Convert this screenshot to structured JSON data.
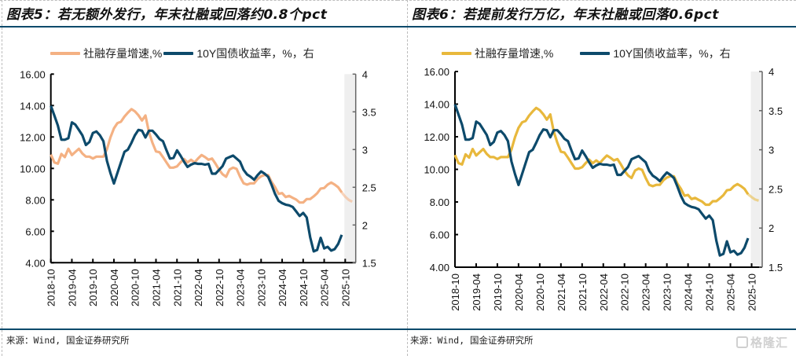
{
  "colors": {
    "rule": "#0d4a6b",
    "yield_line": "#0d4a6b",
    "tsf_left": "#f4b183",
    "tsf_right": "#e8b83c",
    "shade": "#efefef"
  },
  "source_text": "来源：Wind, 国金证券研究所",
  "watermark": "格隆汇",
  "chart_data": [
    {
      "type": "line",
      "title": "图表5：若无额外发行，年末社融或回落约0.8个pct",
      "legend": [
        "社融存量增速,%",
        "10Y国债收益率，%，右"
      ],
      "legend_position": "top",
      "grid": false,
      "x_tick_labels": [
        "2018-10",
        "2019-04",
        "2019-10",
        "2020-04",
        "2020-10",
        "2021-04",
        "2021-10",
        "2022-04",
        "2022-10",
        "2023-04",
        "2023-10",
        "2024-04",
        "2024-10",
        "2025-04",
        "2025-10"
      ],
      "x_range": [
        "2018-10",
        "2026-01"
      ],
      "shaded_region": [
        "2025-10",
        "2026-01"
      ],
      "y_left": {
        "range": [
          4,
          16
        ],
        "ticks": [
          "4.00",
          "6.00",
          "8.00",
          "10.00",
          "12.00",
          "14.00",
          "16.00"
        ]
      },
      "y_right": {
        "range": [
          1.5,
          4
        ],
        "ticks": [
          "1.5",
          "2",
          "2.5",
          "3",
          "3.5",
          "4"
        ]
      },
      "series": [
        {
          "name": "社融存量增速,%",
          "axis": "left",
          "start": "2018-10",
          "values": [
            10.88,
            10.38,
            10.3,
            10.92,
            10.72,
            11.25,
            10.85,
            11.05,
            11.25,
            10.95,
            10.75,
            10.75,
            10.63,
            10.75,
            10.75,
            10.75,
            11.22,
            11.97,
            12.55,
            12.88,
            12.97,
            13.3,
            13.55,
            13.77,
            13.63,
            13.38,
            13.05,
            13.37,
            12.3,
            11.63,
            11.08,
            11.03,
            10.72,
            10.38,
            10.05,
            10.05,
            10.13,
            10.38,
            10.6,
            10.38,
            10.55,
            10.38,
            10.63,
            10.85,
            10.72,
            10.55,
            10.63,
            10.3,
            9.92,
            9.63,
            9.47,
            9.93,
            10.05,
            9.97,
            9.47,
            9.05,
            8.97,
            9.05,
            9.05,
            9.33,
            9.5,
            9.58,
            9.58,
            9.13,
            8.8,
            8.38,
            8.43,
            8.18,
            8.25,
            8.13,
            8.02,
            7.83,
            7.83,
            8.05,
            8.05,
            8.22,
            8.42,
            8.72,
            8.75,
            8.97,
            9.1,
            8.97,
            8.8,
            8.47
          ],
          "projection_start": "2025-09",
          "projection": [
            8.47,
            8.2,
            8.0,
            7.88
          ]
        },
        {
          "name": "10Y国债收益率，%，右",
          "axis": "right",
          "start": "2018-10",
          "values": [
            3.58,
            3.45,
            3.32,
            3.13,
            3.13,
            3.15,
            3.36,
            3.33,
            3.26,
            3.19,
            3.06,
            3.1,
            3.22,
            3.24,
            3.19,
            3.11,
            2.85,
            2.69,
            2.55,
            2.69,
            2.83,
            2.97,
            3.0,
            3.09,
            3.19,
            3.26,
            3.25,
            3.16,
            3.25,
            3.25,
            3.2,
            3.14,
            3.11,
            2.99,
            2.88,
            2.89,
            2.99,
            2.92,
            2.84,
            2.77,
            2.8,
            2.82,
            2.81,
            2.81,
            2.8,
            2.81,
            2.68,
            2.68,
            2.73,
            2.78,
            2.88,
            2.9,
            2.92,
            2.88,
            2.84,
            2.73,
            2.67,
            2.64,
            2.6,
            2.66,
            2.71,
            2.68,
            2.64,
            2.53,
            2.41,
            2.32,
            2.29,
            2.27,
            2.26,
            2.24,
            2.18,
            2.12,
            2.16,
            2.1,
            1.84,
            1.65,
            1.67,
            1.83,
            1.69,
            1.71,
            1.66,
            1.68,
            1.75,
            1.87
          ]
        }
      ]
    },
    {
      "type": "line",
      "title": "图表6：若提前发行万亿，年末社融或回落0.6pct",
      "legend": [
        "社融存量增速,%",
        "10Y国债收益率，%，右"
      ],
      "legend_position": "top",
      "grid": false,
      "x_tick_labels": [
        "2018-10",
        "2019-04",
        "2019-10",
        "2020-04",
        "2020-10",
        "2021-04",
        "2021-10",
        "2022-04",
        "2022-10",
        "2023-04",
        "2023-10",
        "2024-04",
        "2024-10",
        "2025-04",
        "2025-10"
      ],
      "x_range": [
        "2018-10",
        "2026-01"
      ],
      "shaded_region": [
        "2025-10",
        "2026-01"
      ],
      "y_left": {
        "range": [
          4,
          16
        ],
        "ticks": [
          "4.00",
          "6.00",
          "8.00",
          "10.00",
          "12.00",
          "14.00",
          "16.00"
        ]
      },
      "y_right": {
        "range": [
          1.5,
          4
        ],
        "ticks": [
          "1.5",
          "2",
          "2.5",
          "3",
          "3.5",
          "4"
        ]
      },
      "series": [
        {
          "name": "社融存量增速,%",
          "axis": "left",
          "start": "2018-10",
          "values": [
            10.88,
            10.38,
            10.3,
            10.92,
            10.72,
            11.25,
            10.85,
            11.05,
            11.25,
            10.95,
            10.75,
            10.75,
            10.63,
            10.75,
            10.75,
            10.75,
            11.22,
            11.97,
            12.55,
            12.88,
            12.97,
            13.3,
            13.55,
            13.77,
            13.63,
            13.38,
            13.05,
            13.37,
            12.3,
            11.63,
            11.08,
            11.03,
            10.72,
            10.38,
            10.05,
            10.05,
            10.13,
            10.38,
            10.6,
            10.38,
            10.55,
            10.38,
            10.63,
            10.85,
            10.72,
            10.55,
            10.63,
            10.3,
            9.92,
            9.63,
            9.47,
            9.93,
            10.05,
            9.97,
            9.47,
            9.05,
            8.97,
            9.05,
            9.05,
            9.33,
            9.5,
            9.58,
            9.58,
            9.13,
            8.8,
            8.38,
            8.43,
            8.18,
            8.25,
            8.13,
            8.02,
            7.83,
            7.83,
            8.05,
            8.05,
            8.22,
            8.42,
            8.72,
            8.75,
            8.97,
            9.1,
            8.97,
            8.8,
            8.47
          ],
          "projection_start": "2025-09",
          "projection": [
            8.47,
            8.3,
            8.15,
            8.08
          ]
        },
        {
          "name": "10Y国债收益率，%，右",
          "axis": "right",
          "start": "2018-10",
          "values": [
            3.58,
            3.45,
            3.32,
            3.13,
            3.13,
            3.15,
            3.36,
            3.33,
            3.26,
            3.19,
            3.06,
            3.1,
            3.22,
            3.24,
            3.19,
            3.11,
            2.85,
            2.69,
            2.55,
            2.69,
            2.83,
            2.97,
            3.0,
            3.09,
            3.19,
            3.26,
            3.25,
            3.16,
            3.25,
            3.25,
            3.2,
            3.14,
            3.11,
            2.99,
            2.88,
            2.89,
            2.99,
            2.92,
            2.84,
            2.77,
            2.8,
            2.82,
            2.81,
            2.81,
            2.8,
            2.81,
            2.68,
            2.68,
            2.73,
            2.78,
            2.88,
            2.9,
            2.92,
            2.88,
            2.84,
            2.73,
            2.67,
            2.64,
            2.6,
            2.66,
            2.71,
            2.68,
            2.64,
            2.53,
            2.41,
            2.32,
            2.29,
            2.27,
            2.26,
            2.24,
            2.18,
            2.12,
            2.16,
            2.1,
            1.84,
            1.65,
            1.67,
            1.83,
            1.69,
            1.71,
            1.66,
            1.68,
            1.75,
            1.87
          ]
        }
      ]
    }
  ]
}
